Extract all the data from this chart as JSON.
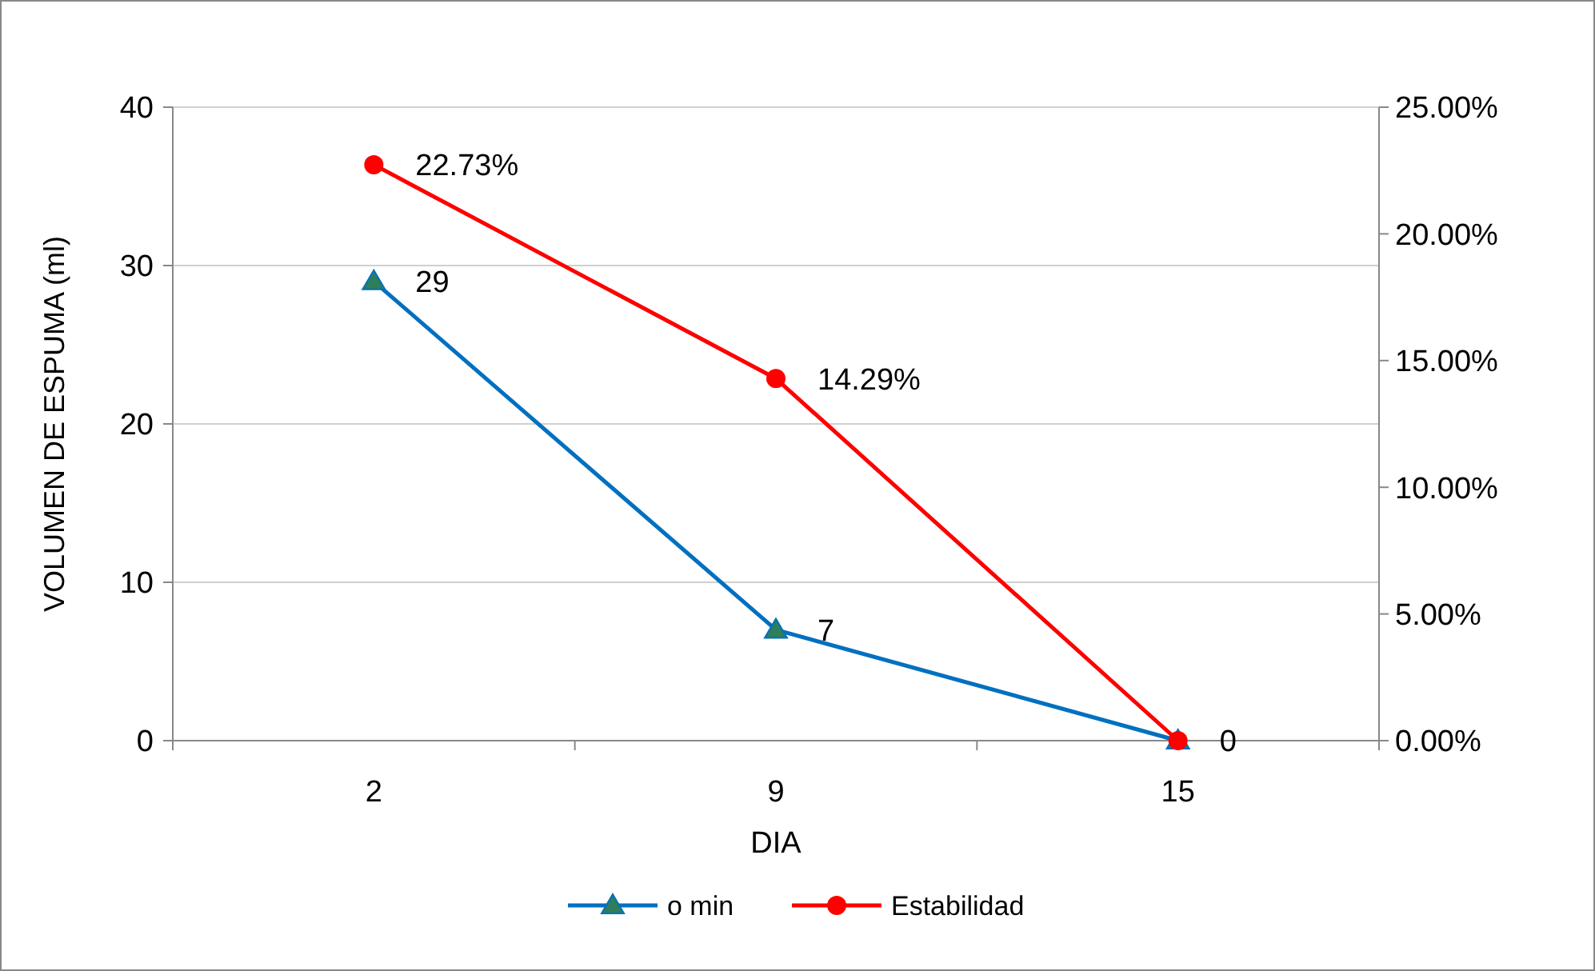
{
  "chart_data": {
    "type": "line",
    "xlabel": "DIA",
    "ylabel": "VOLUMEN DE ESPUMA (ml)",
    "categories": [
      "2",
      "9",
      "15"
    ],
    "series": [
      {
        "name": "o min",
        "color": "#0070c0",
        "marker": "triangle",
        "values": [
          29,
          7,
          0
        ],
        "value_labels": [
          "29",
          "7",
          "0"
        ]
      },
      {
        "name": "Estabilidad",
        "color": "#ff0000",
        "marker": "circle",
        "axis": "y2",
        "values": [
          22.73,
          14.29,
          0
        ],
        "value_labels": [
          "22.73%",
          "14.29%",
          null
        ]
      }
    ],
    "ylim": [
      0,
      40
    ],
    "yticks": [
      0,
      10,
      20,
      30,
      40
    ],
    "y2lim": [
      0,
      25
    ],
    "y2ticks": [
      {
        "value": 0,
        "label": "0.00%"
      },
      {
        "value": 5,
        "label": "5.00%"
      },
      {
        "value": 10,
        "label": "10.00%"
      },
      {
        "value": 15,
        "label": "15.00%"
      },
      {
        "value": 20,
        "label": "20.00%"
      },
      {
        "value": 25,
        "label": "25.00%"
      }
    ],
    "grid": "y",
    "legend": "bottom"
  }
}
